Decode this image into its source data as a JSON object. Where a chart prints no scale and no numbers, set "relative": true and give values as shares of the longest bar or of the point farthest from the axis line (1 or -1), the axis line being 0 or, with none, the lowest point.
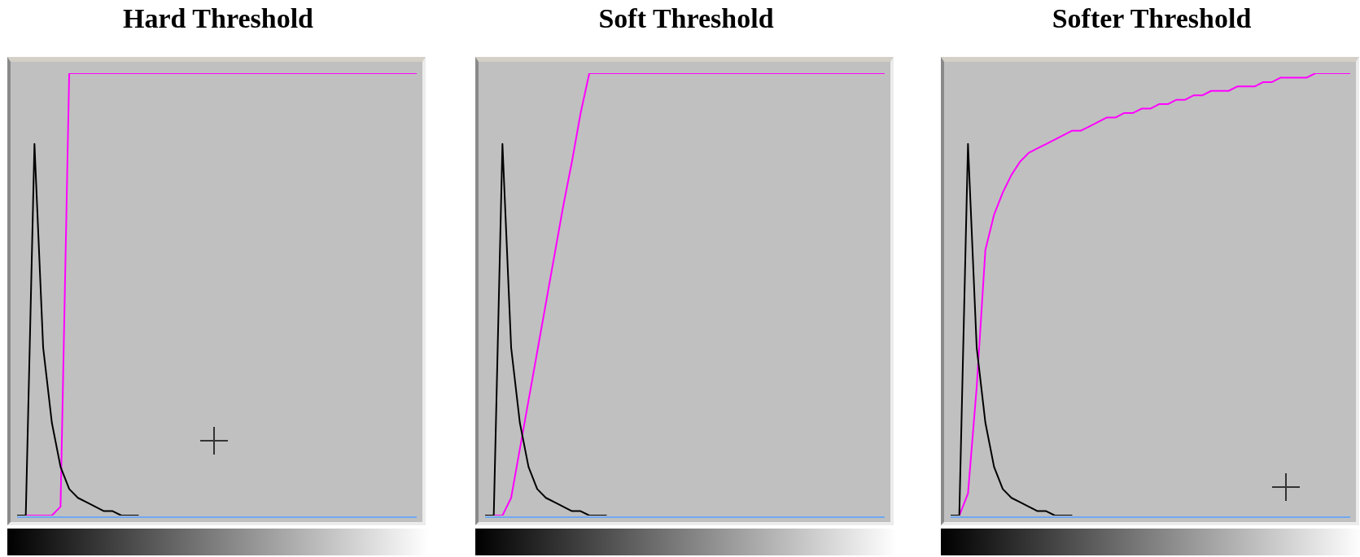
{
  "chart_data": [
    {
      "type": "line",
      "title": "Hard Threshold",
      "relative": true,
      "categories": [
        null,
        null,
        null,
        null,
        null,
        null,
        null,
        null,
        null,
        null,
        null,
        null,
        null,
        null,
        null,
        null,
        null,
        null,
        null,
        null,
        null,
        null,
        null,
        null,
        null,
        null,
        null,
        null,
        null,
        null,
        null,
        null,
        null,
        null,
        null,
        null,
        null,
        null,
        null,
        null,
        null,
        null,
        null,
        null,
        null,
        null,
        null
      ],
      "ref_lines": [
        {
          "axis": "y",
          "value": 0,
          "color": "#6fa8f0"
        }
      ],
      "series": [
        {
          "color": "#000000",
          "values": [
            0,
            0,
            0.84,
            0.38,
            0.21,
            0.11,
            0.06,
            0.04,
            0.03,
            0.02,
            0.01,
            0.01,
            0,
            0,
            0,
            null,
            null,
            null,
            null,
            null,
            null,
            null,
            null,
            null,
            null,
            null,
            null,
            null,
            null,
            null,
            null,
            null,
            null,
            null,
            null,
            null,
            null,
            null,
            null,
            null,
            null,
            null,
            null,
            null,
            null,
            null,
            null
          ]
        },
        {
          "color": "#ff00ff",
          "values": [
            0,
            0,
            0,
            0,
            0,
            0.02,
            1,
            1,
            1,
            1,
            1,
            1,
            1,
            1,
            1,
            1,
            1,
            1,
            1,
            1,
            1,
            1,
            1,
            1,
            1,
            1,
            1,
            1,
            1,
            1,
            1,
            1,
            1,
            1,
            1,
            1,
            1,
            1,
            1,
            1,
            1,
            1,
            1,
            1,
            1,
            1,
            1
          ]
        }
      ]
    },
    {
      "type": "line",
      "title": "Soft Threshold",
      "relative": true,
      "categories": [
        null,
        null,
        null,
        null,
        null,
        null,
        null,
        null,
        null,
        null,
        null,
        null,
        null,
        null,
        null,
        null,
        null,
        null,
        null,
        null,
        null,
        null,
        null,
        null,
        null,
        null,
        null,
        null,
        null,
        null,
        null,
        null,
        null,
        null,
        null,
        null,
        null,
        null,
        null,
        null,
        null,
        null,
        null,
        null,
        null,
        null,
        null
      ],
      "ref_lines": [
        {
          "axis": "y",
          "value": 0,
          "color": "#6fa8f0"
        }
      ],
      "series": [
        {
          "color": "#000000",
          "values": [
            0,
            0,
            0.84,
            0.38,
            0.21,
            0.11,
            0.06,
            0.04,
            0.03,
            0.02,
            0.01,
            0.01,
            0,
            0,
            0,
            null,
            null,
            null,
            null,
            null,
            null,
            null,
            null,
            null,
            null,
            null,
            null,
            null,
            null,
            null,
            null,
            null,
            null,
            null,
            null,
            null,
            null,
            null,
            null,
            null,
            null,
            null,
            null,
            null,
            null,
            null,
            null
          ]
        },
        {
          "color": "#ff00ff",
          "values": [
            0,
            0,
            0,
            0.04,
            0.15,
            0.26,
            0.37,
            0.48,
            0.59,
            0.7,
            0.8,
            0.91,
            1,
            1,
            1,
            1,
            1,
            1,
            1,
            1,
            1,
            1,
            1,
            1,
            1,
            1,
            1,
            1,
            1,
            1,
            1,
            1,
            1,
            1,
            1,
            1,
            1,
            1,
            1,
            1,
            1,
            1,
            1,
            1,
            1,
            1,
            1
          ]
        }
      ]
    },
    {
      "type": "line",
      "title": "Softer Threshold",
      "relative": true,
      "categories": [
        null,
        null,
        null,
        null,
        null,
        null,
        null,
        null,
        null,
        null,
        null,
        null,
        null,
        null,
        null,
        null,
        null,
        null,
        null,
        null,
        null,
        null,
        null,
        null,
        null,
        null,
        null,
        null,
        null,
        null,
        null,
        null,
        null,
        null,
        null,
        null,
        null,
        null,
        null,
        null,
        null,
        null,
        null,
        null,
        null,
        null,
        null
      ],
      "ref_lines": [
        {
          "axis": "y",
          "value": 0,
          "color": "#6fa8f0"
        }
      ],
      "series": [
        {
          "color": "#000000",
          "values": [
            0,
            0,
            0.84,
            0.38,
            0.21,
            0.11,
            0.06,
            0.04,
            0.03,
            0.02,
            0.01,
            0.01,
            0,
            0,
            0,
            null,
            null,
            null,
            null,
            null,
            null,
            null,
            null,
            null,
            null,
            null,
            null,
            null,
            null,
            null,
            null,
            null,
            null,
            null,
            null,
            null,
            null,
            null,
            null,
            null,
            null,
            null,
            null,
            null,
            null,
            null,
            null
          ]
        },
        {
          "color": "#ff00ff",
          "values": [
            0,
            0,
            0.05,
            0.29,
            0.6,
            0.68,
            0.73,
            0.77,
            0.8,
            0.82,
            0.83,
            0.84,
            0.85,
            0.86,
            0.87,
            0.87,
            0.88,
            0.89,
            0.9,
            0.9,
            0.91,
            0.91,
            0.92,
            0.92,
            0.93,
            0.93,
            0.94,
            0.94,
            0.95,
            0.95,
            0.96,
            0.96,
            0.96,
            0.97,
            0.97,
            0.97,
            0.98,
            0.98,
            0.99,
            0.99,
            0.99,
            0.99,
            1,
            1,
            1,
            1,
            1
          ]
        }
      ]
    }
  ]
}
